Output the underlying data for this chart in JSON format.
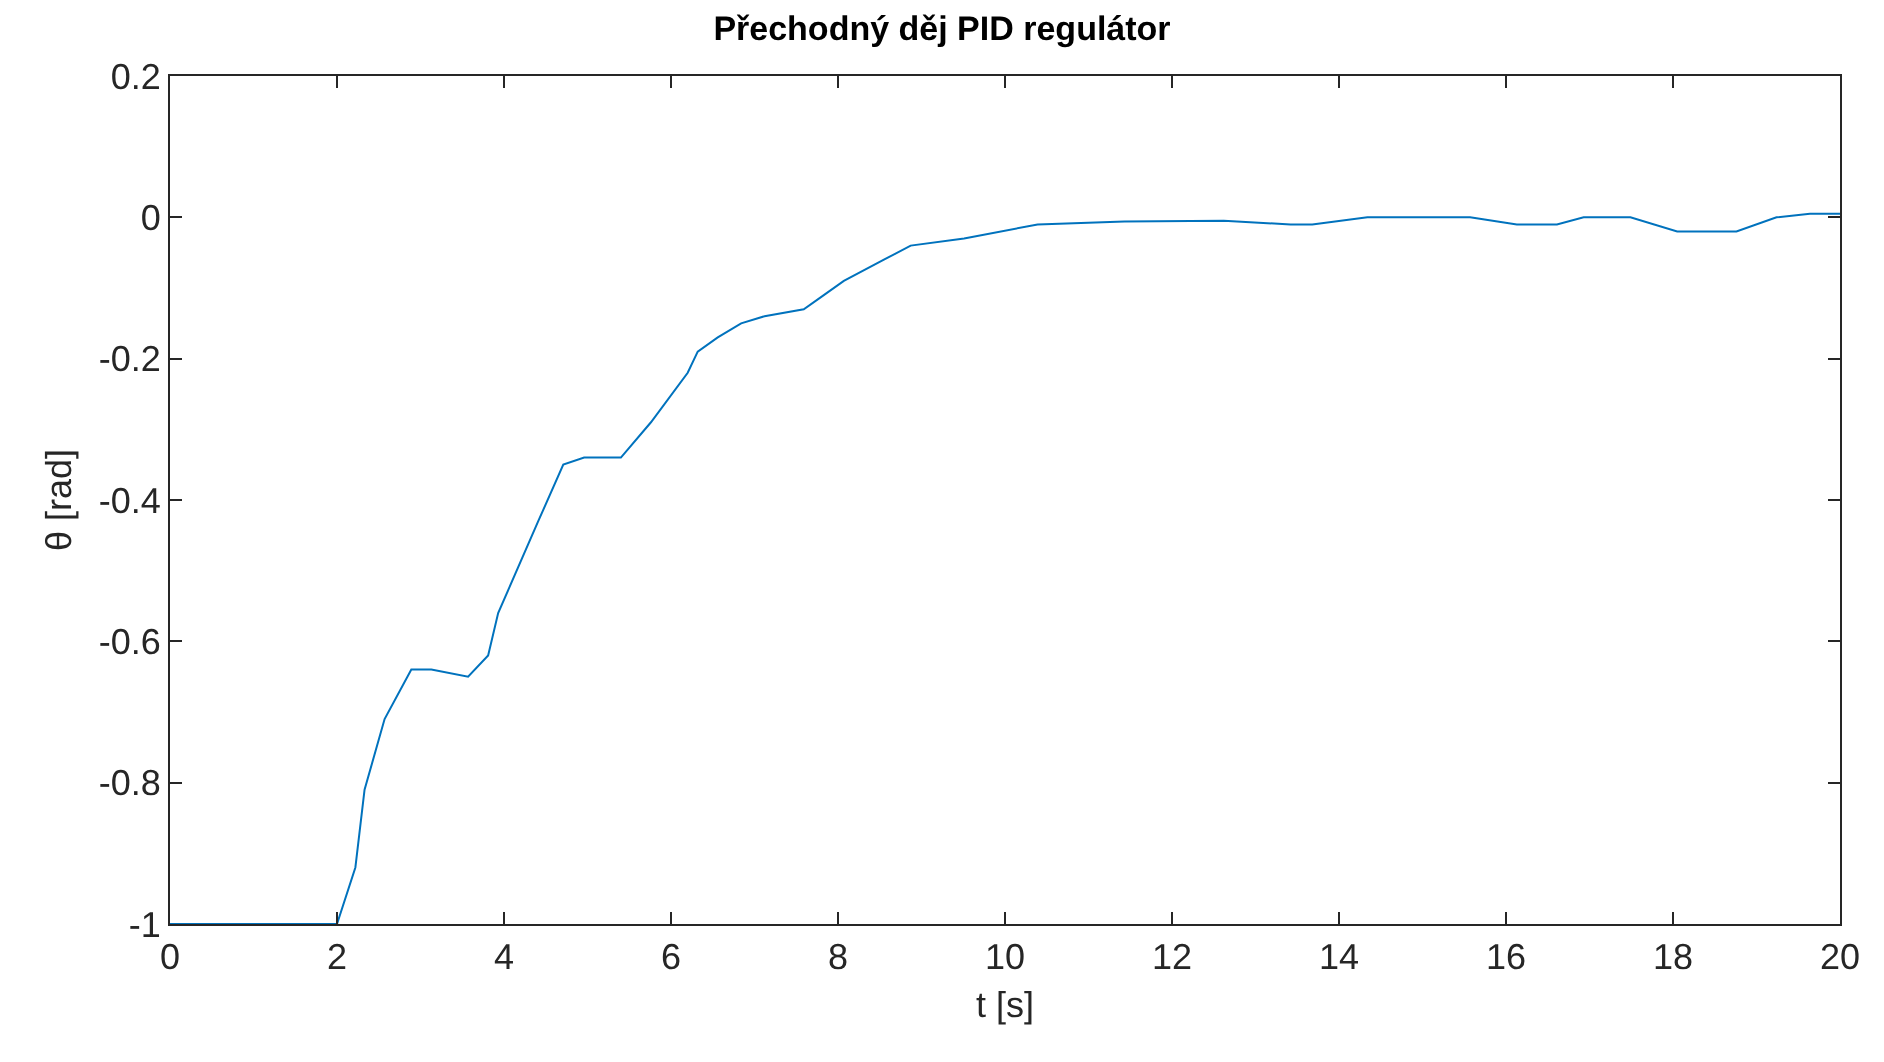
{
  "chart_data": {
    "type": "line",
    "title": "Přechodný děj PID regulátor",
    "xlabel": "t [s]",
    "ylabel": "θ [rad]",
    "x": [
      0,
      2.0,
      2.22,
      2.33,
      2.57,
      2.89,
      3.13,
      3.57,
      3.81,
      3.93,
      4.41,
      4.71,
      4.96,
      5.4,
      5.76,
      6.2,
      6.32,
      6.56,
      6.84,
      7.12,
      7.59,
      7.83,
      8.07,
      8.55,
      8.87,
      9.51,
      10.39,
      11.43,
      12.62,
      13.42,
      13.68,
      14.34,
      15.57,
      16.13,
      16.61,
      16.93,
      17.49,
      18.05,
      18.76,
      19.24,
      19.64,
      20.0
    ],
    "series": [
      {
        "color": "#0072bd",
        "values": [
          -1,
          -1,
          -0.92,
          -0.81,
          -0.71,
          -0.64,
          -0.64,
          -0.65,
          -0.62,
          -0.56,
          -0.43,
          -0.35,
          -0.34,
          -0.34,
          -0.29,
          -0.22,
          -0.19,
          -0.17,
          -0.15,
          -0.14,
          -0.13,
          -0.11,
          -0.09,
          -0.06,
          -0.04,
          -0.03,
          -0.01,
          -0.006,
          -0.005,
          -0.01,
          -0.01,
          0,
          0,
          -0.01,
          -0.01,
          0,
          0,
          -0.02,
          -0.02,
          0,
          0.005,
          0.005
        ]
      }
    ],
    "xlim": [
      0,
      20
    ],
    "xticks": [
      0,
      2,
      4,
      6,
      8,
      10,
      12,
      14,
      16,
      18,
      20
    ],
    "ylim": [
      -1,
      0.2
    ],
    "yticks": [
      -1,
      -0.8,
      -0.6,
      -0.4,
      -0.2,
      0,
      0.2
    ],
    "marker": "none",
    "line_style": "solid"
  }
}
